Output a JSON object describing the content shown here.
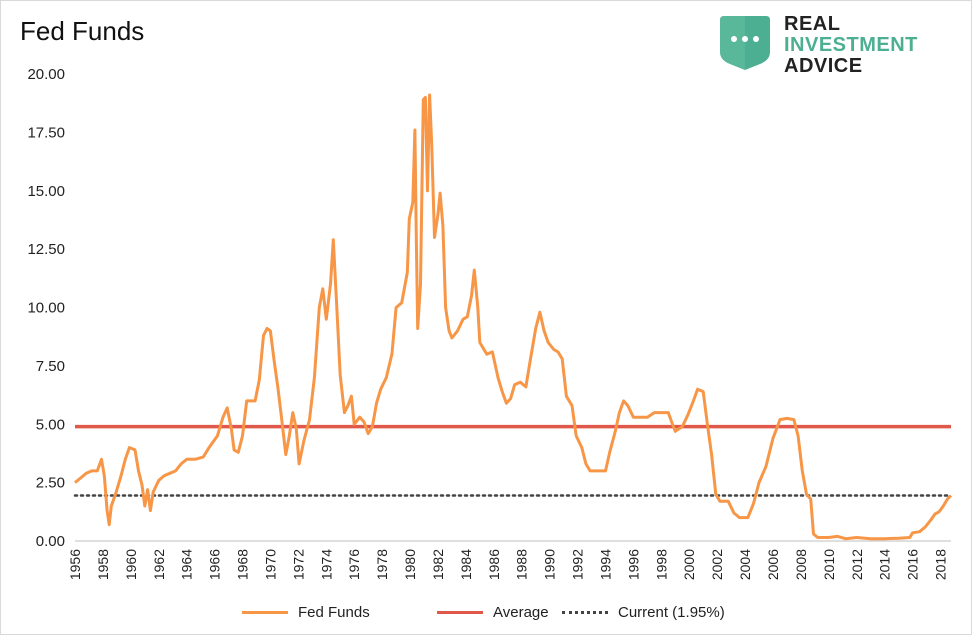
{
  "title": "Fed Funds",
  "logo": {
    "line1": "REAL",
    "line2": "INVESTMENT",
    "line3": "ADVICE",
    "colors": {
      "badge": "#4caf91",
      "real": "#222222",
      "investment": "#4caf91",
      "advice": "#222222"
    }
  },
  "legend": [
    {
      "label": "Fed Funds",
      "color": "#f79646",
      "style": "solid"
    },
    {
      "label": "Average",
      "color": "#e0584a",
      "style": "solid"
    },
    {
      "label": "Current (1.95%)",
      "color": "#444444",
      "style": "dotted"
    }
  ],
  "chart_data": {
    "type": "line",
    "title": "Fed Funds",
    "xlabel": "",
    "ylabel": "",
    "xlim": [
      1956,
      2018.75
    ],
    "ylim": [
      0,
      20
    ],
    "yticks": [
      "0.00",
      "2.50",
      "5.00",
      "7.50",
      "10.00",
      "12.50",
      "15.00",
      "17.50",
      "20.00"
    ],
    "xticks": [
      "1956",
      "1958",
      "1960",
      "1962",
      "1964",
      "1966",
      "1968",
      "1970",
      "1972",
      "1974",
      "1976",
      "1978",
      "1980",
      "1982",
      "1984",
      "1986",
      "1988",
      "1990",
      "1992",
      "1994",
      "1996",
      "1998",
      "2000",
      "2002",
      "2004",
      "2006",
      "2008",
      "2010",
      "2012",
      "2014",
      "2016",
      "2018"
    ],
    "grid": false,
    "legend_position": "bottom",
    "series": [
      {
        "name": "Fed Funds",
        "color": "#f79646",
        "points": [
          [
            1956.0,
            2.5
          ],
          [
            1956.4,
            2.7
          ],
          [
            1956.8,
            2.9
          ],
          [
            1957.2,
            3.0
          ],
          [
            1957.6,
            3.0
          ],
          [
            1957.9,
            3.5
          ],
          [
            1958.1,
            2.8
          ],
          [
            1958.3,
            1.3
          ],
          [
            1958.45,
            0.7
          ],
          [
            1958.6,
            1.5
          ],
          [
            1958.9,
            2.0
          ],
          [
            1959.3,
            2.8
          ],
          [
            1959.6,
            3.5
          ],
          [
            1959.9,
            4.0
          ],
          [
            1960.3,
            3.9
          ],
          [
            1960.55,
            3.0
          ],
          [
            1960.8,
            2.4
          ],
          [
            1961.0,
            1.5
          ],
          [
            1961.2,
            2.2
          ],
          [
            1961.4,
            1.3
          ],
          [
            1961.6,
            2.1
          ],
          [
            1962.0,
            2.6
          ],
          [
            1962.4,
            2.8
          ],
          [
            1962.8,
            2.9
          ],
          [
            1963.2,
            3.0
          ],
          [
            1963.6,
            3.3
          ],
          [
            1964.0,
            3.5
          ],
          [
            1964.6,
            3.5
          ],
          [
            1965.2,
            3.6
          ],
          [
            1965.6,
            4.0
          ],
          [
            1966.2,
            4.5
          ],
          [
            1966.6,
            5.3
          ],
          [
            1966.9,
            5.7
          ],
          [
            1967.2,
            4.8
          ],
          [
            1967.4,
            3.9
          ],
          [
            1967.7,
            3.8
          ],
          [
            1968.0,
            4.5
          ],
          [
            1968.3,
            6.0
          ],
          [
            1968.6,
            6.0
          ],
          [
            1968.9,
            6.0
          ],
          [
            1969.2,
            6.9
          ],
          [
            1969.5,
            8.8
          ],
          [
            1969.75,
            9.1
          ],
          [
            1970.0,
            9.0
          ],
          [
            1970.25,
            7.8
          ],
          [
            1970.55,
            6.5
          ],
          [
            1970.85,
            5.0
          ],
          [
            1971.1,
            3.7
          ],
          [
            1971.35,
            4.5
          ],
          [
            1971.6,
            5.5
          ],
          [
            1971.85,
            4.8
          ],
          [
            1972.05,
            3.3
          ],
          [
            1972.4,
            4.3
          ],
          [
            1972.8,
            5.2
          ],
          [
            1973.15,
            7.0
          ],
          [
            1973.5,
            10.0
          ],
          [
            1973.75,
            10.8
          ],
          [
            1974.0,
            9.5
          ],
          [
            1974.3,
            11.0
          ],
          [
            1974.5,
            12.9
          ],
          [
            1974.75,
            10.0
          ],
          [
            1975.0,
            7.1
          ],
          [
            1975.3,
            5.5
          ],
          [
            1975.55,
            5.8
          ],
          [
            1975.8,
            6.2
          ],
          [
            1976.0,
            5.0
          ],
          [
            1976.4,
            5.3
          ],
          [
            1976.7,
            5.1
          ],
          [
            1977.0,
            4.6
          ],
          [
            1977.3,
            4.9
          ],
          [
            1977.6,
            5.9
          ],
          [
            1977.9,
            6.5
          ],
          [
            1978.3,
            7.0
          ],
          [
            1978.7,
            8.0
          ],
          [
            1979.0,
            10.0
          ],
          [
            1979.4,
            10.2
          ],
          [
            1979.8,
            11.5
          ],
          [
            1979.95,
            13.8
          ],
          [
            1980.2,
            14.5
          ],
          [
            1980.35,
            17.6
          ],
          [
            1980.45,
            13.0
          ],
          [
            1980.55,
            9.1
          ],
          [
            1980.75,
            11.0
          ],
          [
            1980.95,
            18.9
          ],
          [
            1981.1,
            19.0
          ],
          [
            1981.25,
            15.0
          ],
          [
            1981.4,
            19.1
          ],
          [
            1981.55,
            17.0
          ],
          [
            1981.75,
            13.0
          ],
          [
            1982.0,
            14.0
          ],
          [
            1982.15,
            14.9
          ],
          [
            1982.35,
            13.5
          ],
          [
            1982.55,
            10.0
          ],
          [
            1982.8,
            9.0
          ],
          [
            1983.0,
            8.7
          ],
          [
            1983.4,
            9.0
          ],
          [
            1983.8,
            9.5
          ],
          [
            1984.1,
            9.6
          ],
          [
            1984.4,
            10.5
          ],
          [
            1984.6,
            11.6
          ],
          [
            1984.85,
            10.0
          ],
          [
            1985.0,
            8.5
          ],
          [
            1985.5,
            8.0
          ],
          [
            1985.9,
            8.1
          ],
          [
            1986.3,
            7.0
          ],
          [
            1986.6,
            6.4
          ],
          [
            1986.9,
            5.9
          ],
          [
            1987.2,
            6.1
          ],
          [
            1987.5,
            6.7
          ],
          [
            1987.9,
            6.8
          ],
          [
            1988.3,
            6.6
          ],
          [
            1988.6,
            7.7
          ],
          [
            1989.0,
            9.1
          ],
          [
            1989.3,
            9.8
          ],
          [
            1989.6,
            9.0
          ],
          [
            1989.9,
            8.5
          ],
          [
            1990.3,
            8.2
          ],
          [
            1990.6,
            8.1
          ],
          [
            1990.9,
            7.8
          ],
          [
            1991.2,
            6.2
          ],
          [
            1991.6,
            5.8
          ],
          [
            1991.9,
            4.5
          ],
          [
            1992.3,
            4.0
          ],
          [
            1992.6,
            3.3
          ],
          [
            1992.9,
            3.0
          ],
          [
            1993.5,
            3.0
          ],
          [
            1994.0,
            3.0
          ],
          [
            1994.3,
            3.8
          ],
          [
            1994.7,
            4.7
          ],
          [
            1995.0,
            5.5
          ],
          [
            1995.3,
            6.0
          ],
          [
            1995.6,
            5.8
          ],
          [
            1996.0,
            5.3
          ],
          [
            1996.5,
            5.3
          ],
          [
            1997.0,
            5.3
          ],
          [
            1997.5,
            5.5
          ],
          [
            1998.0,
            5.5
          ],
          [
            1998.5,
            5.5
          ],
          [
            1998.8,
            5.0
          ],
          [
            1999.0,
            4.7
          ],
          [
            1999.5,
            4.9
          ],
          [
            1999.9,
            5.4
          ],
          [
            2000.3,
            6.0
          ],
          [
            2000.6,
            6.5
          ],
          [
            2001.0,
            6.4
          ],
          [
            2001.3,
            5.0
          ],
          [
            2001.6,
            3.7
          ],
          [
            2001.9,
            2.0
          ],
          [
            2002.2,
            1.7
          ],
          [
            2002.8,
            1.7
          ],
          [
            2003.2,
            1.2
          ],
          [
            2003.6,
            1.0
          ],
          [
            2004.2,
            1.0
          ],
          [
            2004.6,
            1.6
          ],
          [
            2005.0,
            2.5
          ],
          [
            2005.5,
            3.2
          ],
          [
            2006.0,
            4.4
          ],
          [
            2006.5,
            5.2
          ],
          [
            2007.0,
            5.25
          ],
          [
            2007.5,
            5.2
          ],
          [
            2007.8,
            4.5
          ],
          [
            2008.1,
            3.0
          ],
          [
            2008.4,
            2.0
          ],
          [
            2008.7,
            1.8
          ],
          [
            2008.9,
            0.3
          ],
          [
            2009.2,
            0.15
          ],
          [
            2010.0,
            0.15
          ],
          [
            2010.6,
            0.2
          ],
          [
            2011.2,
            0.1
          ],
          [
            2012.0,
            0.15
          ],
          [
            2013.0,
            0.1
          ],
          [
            2014.0,
            0.1
          ],
          [
            2015.0,
            0.12
          ],
          [
            2015.8,
            0.15
          ],
          [
            2016.0,
            0.35
          ],
          [
            2016.5,
            0.4
          ],
          [
            2016.9,
            0.6
          ],
          [
            2017.3,
            0.9
          ],
          [
            2017.6,
            1.15
          ],
          [
            2017.9,
            1.25
          ],
          [
            2018.2,
            1.5
          ],
          [
            2018.5,
            1.8
          ],
          [
            2018.75,
            1.95
          ]
        ]
      },
      {
        "name": "Average",
        "color": "#e0584a",
        "y": 4.9
      },
      {
        "name": "Current (1.95%)",
        "color": "#444444",
        "y": 1.95
      }
    ]
  }
}
